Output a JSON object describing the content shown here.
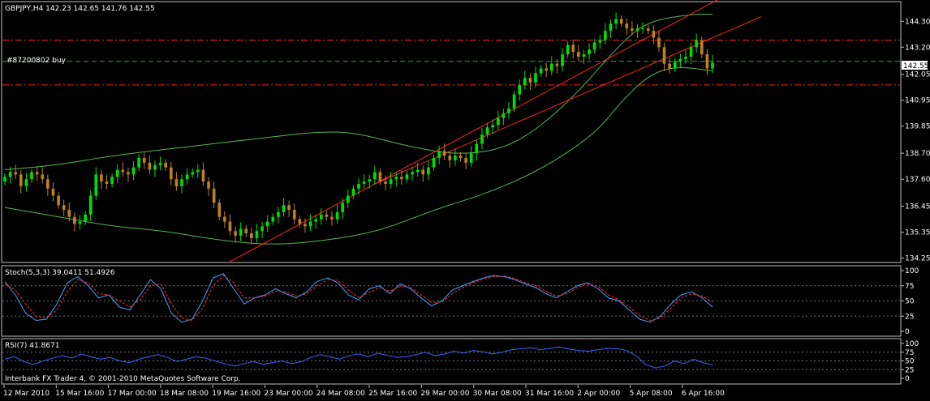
{
  "colors": {
    "background": "#000000",
    "grid_axis": "#bfbfbf",
    "text": "#ffffff",
    "bull": "#00e000",
    "bear": "#c08020",
    "bollinger": "#58b458",
    "channel": "#ff2020",
    "level": "#ff2020",
    "green_line": "#40a040",
    "stoch_main": "#4aa0ff",
    "stoch_signal": "#ff3030",
    "rsi": "#4060ff",
    "price_label_bg": "#ffffff"
  },
  "main": {
    "header": "GBPJPY,H4  142.23 142.65 141.76 142.55",
    "order_label": "#87200802 buy",
    "current_price": "142.55"
  },
  "stoch": {
    "label": "Stoch(5,3,3) 39.0411 51.4926",
    "axis_labels": [
      "100",
      "75",
      "50",
      "25",
      "0"
    ],
    "levels": [
      100,
      75,
      50,
      25,
      0
    ]
  },
  "rsi": {
    "label": "RSI(7) 41.8671",
    "axis_labels": [
      "100",
      "75",
      "50",
      "25",
      "0"
    ],
    "levels": [
      100,
      75,
      50,
      25,
      0
    ]
  },
  "footer_text": "Interbank FX Trader 4, © 2001-2010 MetaQuotes Software Corp.",
  "time_axis": [
    "12 Mar 2010",
    "15 Mar 16:00",
    "17 Mar 00:00",
    "18 Mar 08:00",
    "19 Mar 16:00",
    "23 Mar 00:00",
    "24 Mar 08:00",
    "25 Mar 16:00",
    "29 Mar 00:00",
    "30 Mar 08:00",
    "31 Mar 16:00",
    "2 Apr 00:00",
    "5 Apr 08:00",
    "6 Apr 16:00"
  ],
  "chart_data": {
    "type": "candlestick",
    "symbol": "GBPJPY",
    "timeframe": "H4",
    "ylim": [
      134.1,
      145.1
    ],
    "y_ticks": [
      144.3,
      143.2,
      142.05,
      140.95,
      139.85,
      138.7,
      137.6,
      136.45,
      135.35,
      134.25
    ],
    "horizontal_levels": [
      143.5,
      141.6
    ],
    "green_level": 142.6,
    "close_series": [
      137.7,
      137.9,
      137.8,
      137.3,
      137.6,
      137.9,
      137.8,
      137.6,
      137.2,
      136.9,
      136.5,
      136.3,
      136.0,
      135.7,
      135.8,
      136.1,
      136.9,
      137.8,
      137.5,
      137.4,
      137.7,
      138.0,
      137.9,
      137.8,
      138.1,
      138.5,
      138.3,
      138.0,
      138.2,
      138.3,
      138.1,
      137.6,
      137.3,
      137.6,
      137.8,
      137.9,
      138.0,
      137.5,
      137.2,
      136.6,
      136.0,
      135.8,
      135.4,
      135.2,
      135.5,
      135.3,
      135.1,
      135.4,
      135.6,
      135.8,
      136.0,
      136.2,
      136.5,
      136.3,
      135.9,
      135.7,
      135.6,
      135.8,
      135.9,
      136.1,
      136.0,
      135.9,
      136.2,
      136.6,
      136.9,
      137.2,
      137.4,
      137.5,
      137.6,
      137.9,
      137.5,
      137.4,
      137.6,
      137.7,
      137.6,
      137.8,
      137.9,
      138.0,
      137.8,
      138.1,
      138.5,
      138.8,
      138.6,
      138.4,
      138.6,
      138.5,
      138.3,
      138.7,
      139.1,
      139.5,
      139.8,
      139.9,
      140.2,
      140.4,
      140.6,
      141.2,
      141.6,
      141.9,
      141.7,
      142.1,
      142.3,
      142.2,
      142.5,
      142.4,
      142.9,
      143.3,
      143.0,
      142.8,
      142.9,
      143.1,
      143.4,
      143.5,
      143.9,
      144.2,
      144.4,
      144.2,
      144.0,
      143.9,
      144.0,
      144.0,
      143.9,
      143.6,
      143.2,
      142.5,
      142.3,
      142.6,
      142.7,
      142.8,
      143.2,
      143.5,
      142.9,
      142.3,
      142.55
    ],
    "upper_band_points": [
      [
        0,
        138.0
      ],
      [
        10,
        138.2
      ],
      [
        20,
        138.6
      ],
      [
        35,
        139.0
      ],
      [
        50,
        139.4
      ],
      [
        58,
        139.6
      ],
      [
        65,
        139.6
      ],
      [
        75,
        139.0
      ],
      [
        85,
        138.6
      ],
      [
        95,
        139.0
      ],
      [
        105,
        140.8
      ],
      [
        115,
        143.4
      ],
      [
        120,
        144.3
      ],
      [
        128,
        144.6
      ],
      [
        132,
        144.6
      ]
    ],
    "lower_band_points": [
      [
        0,
        136.4
      ],
      [
        10,
        136.0
      ],
      [
        20,
        135.6
      ],
      [
        30,
        135.4
      ],
      [
        40,
        135.0
      ],
      [
        50,
        134.8
      ],
      [
        60,
        135.0
      ],
      [
        70,
        135.4
      ],
      [
        80,
        136.3
      ],
      [
        90,
        137.0
      ],
      [
        100,
        138.0
      ],
      [
        110,
        139.5
      ],
      [
        115,
        140.9
      ],
      [
        120,
        142.0
      ],
      [
        125,
        142.4
      ],
      [
        132,
        142.2
      ]
    ],
    "channel_lines": [
      {
        "from": [
          42,
          134.1
        ],
        "to": [
          132,
          145.1
        ]
      },
      {
        "from": [
          69,
          137.4
        ],
        "to": [
          132,
          143.6
        ]
      }
    ],
    "stoch_main": [
      82,
      60,
      30,
      18,
      20,
      45,
      80,
      90,
      75,
      55,
      60,
      40,
      35,
      60,
      85,
      70,
      30,
      15,
      20,
      50,
      88,
      95,
      70,
      45,
      55,
      60,
      70,
      62,
      55,
      65,
      82,
      88,
      80,
      60,
      52,
      70,
      75,
      62,
      78,
      70,
      55,
      42,
      50,
      68,
      75,
      82,
      88,
      92,
      90,
      85,
      78,
      72,
      62,
      55,
      65,
      75,
      80,
      70,
      55,
      50,
      35,
      20,
      15,
      25,
      45,
      60,
      65,
      55,
      40
    ],
    "stoch_signal": [
      78,
      68,
      45,
      25,
      22,
      35,
      65,
      85,
      80,
      62,
      60,
      50,
      40,
      52,
      75,
      78,
      45,
      22,
      18,
      38,
      75,
      92,
      80,
      55,
      55,
      58,
      66,
      65,
      58,
      62,
      75,
      85,
      84,
      68,
      56,
      64,
      72,
      66,
      74,
      72,
      60,
      48,
      48,
      62,
      72,
      80,
      86,
      90,
      91,
      87,
      80,
      75,
      66,
      58,
      62,
      72,
      78,
      74,
      60,
      52,
      40,
      26,
      18,
      22,
      38,
      55,
      62,
      58,
      48
    ],
    "rsi": [
      55,
      62,
      48,
      40,
      50,
      58,
      65,
      58,
      70,
      62,
      55,
      60,
      50,
      45,
      55,
      62,
      68,
      60,
      48,
      55,
      62,
      58,
      50,
      42,
      35,
      42,
      48,
      40,
      45,
      50,
      42,
      48,
      60,
      68,
      62,
      55,
      65,
      70,
      62,
      72,
      66,
      60,
      62,
      68,
      75,
      65,
      70,
      78,
      72,
      80,
      76,
      70,
      75,
      82,
      85,
      88,
      82,
      86,
      90,
      84,
      80,
      78,
      82,
      86,
      85,
      80,
      65,
      40,
      30,
      35,
      50,
      42,
      55,
      45,
      38
    ]
  }
}
